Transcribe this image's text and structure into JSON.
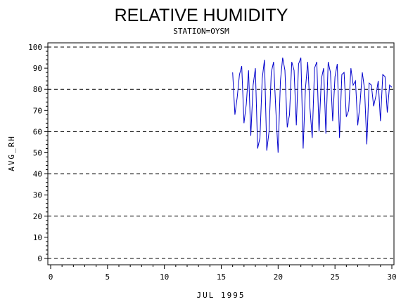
{
  "chart_data": {
    "type": "line",
    "title": "RELATIVE HUMIDITY",
    "subtitle": "STATION=OYSM",
    "xlabel": "JUL 1995",
    "ylabel": "AVG_RH",
    "xlim": [
      0,
      30
    ],
    "ylim": [
      0,
      100
    ],
    "x_ticks": [
      0,
      5,
      10,
      15,
      20,
      25,
      30
    ],
    "y_ticks": [
      0,
      10,
      20,
      30,
      40,
      50,
      60,
      70,
      80,
      90,
      100
    ],
    "gridlines_y": [
      0,
      20,
      40,
      60,
      80,
      100
    ],
    "grid": "horizontal dashed",
    "series": [
      {
        "color": "#0000cc",
        "x": [
          16.0,
          16.2,
          16.4,
          16.6,
          16.8,
          17.0,
          17.2,
          17.4,
          17.6,
          17.8,
          18.0,
          18.2,
          18.4,
          18.6,
          18.8,
          19.0,
          19.2,
          19.4,
          19.6,
          19.8,
          20.0,
          20.2,
          20.4,
          20.6,
          20.8,
          21.0,
          21.2,
          21.4,
          21.6,
          21.8,
          22.0,
          22.2,
          22.4,
          22.6,
          22.8,
          23.0,
          23.2,
          23.4,
          23.6,
          23.8,
          24.0,
          24.2,
          24.4,
          24.6,
          24.8,
          25.0,
          25.2,
          25.4,
          25.6,
          25.8,
          26.0,
          26.2,
          26.4,
          26.6,
          26.8,
          27.0,
          27.2,
          27.4,
          27.6,
          27.8,
          28.0,
          28.2,
          28.4,
          28.6,
          28.8,
          29.0,
          29.2,
          29.4,
          29.6,
          29.8,
          30.0
        ],
        "values": [
          88,
          68,
          76,
          87,
          91,
          64,
          73,
          89,
          58,
          82,
          90,
          52,
          57,
          85,
          94,
          51,
          60,
          88,
          93,
          70,
          50,
          84,
          95,
          89,
          62,
          68,
          93,
          89,
          63,
          92,
          95,
          52,
          80,
          93,
          71,
          57,
          90,
          93,
          60,
          85,
          90,
          59,
          93,
          88,
          65,
          86,
          92,
          57,
          87,
          88,
          67,
          70,
          90,
          82,
          84,
          63,
          73,
          88,
          80,
          54,
          83,
          82,
          72,
          77,
          84,
          65,
          87,
          86,
          69,
          82,
          81
        ]
      }
    ]
  }
}
